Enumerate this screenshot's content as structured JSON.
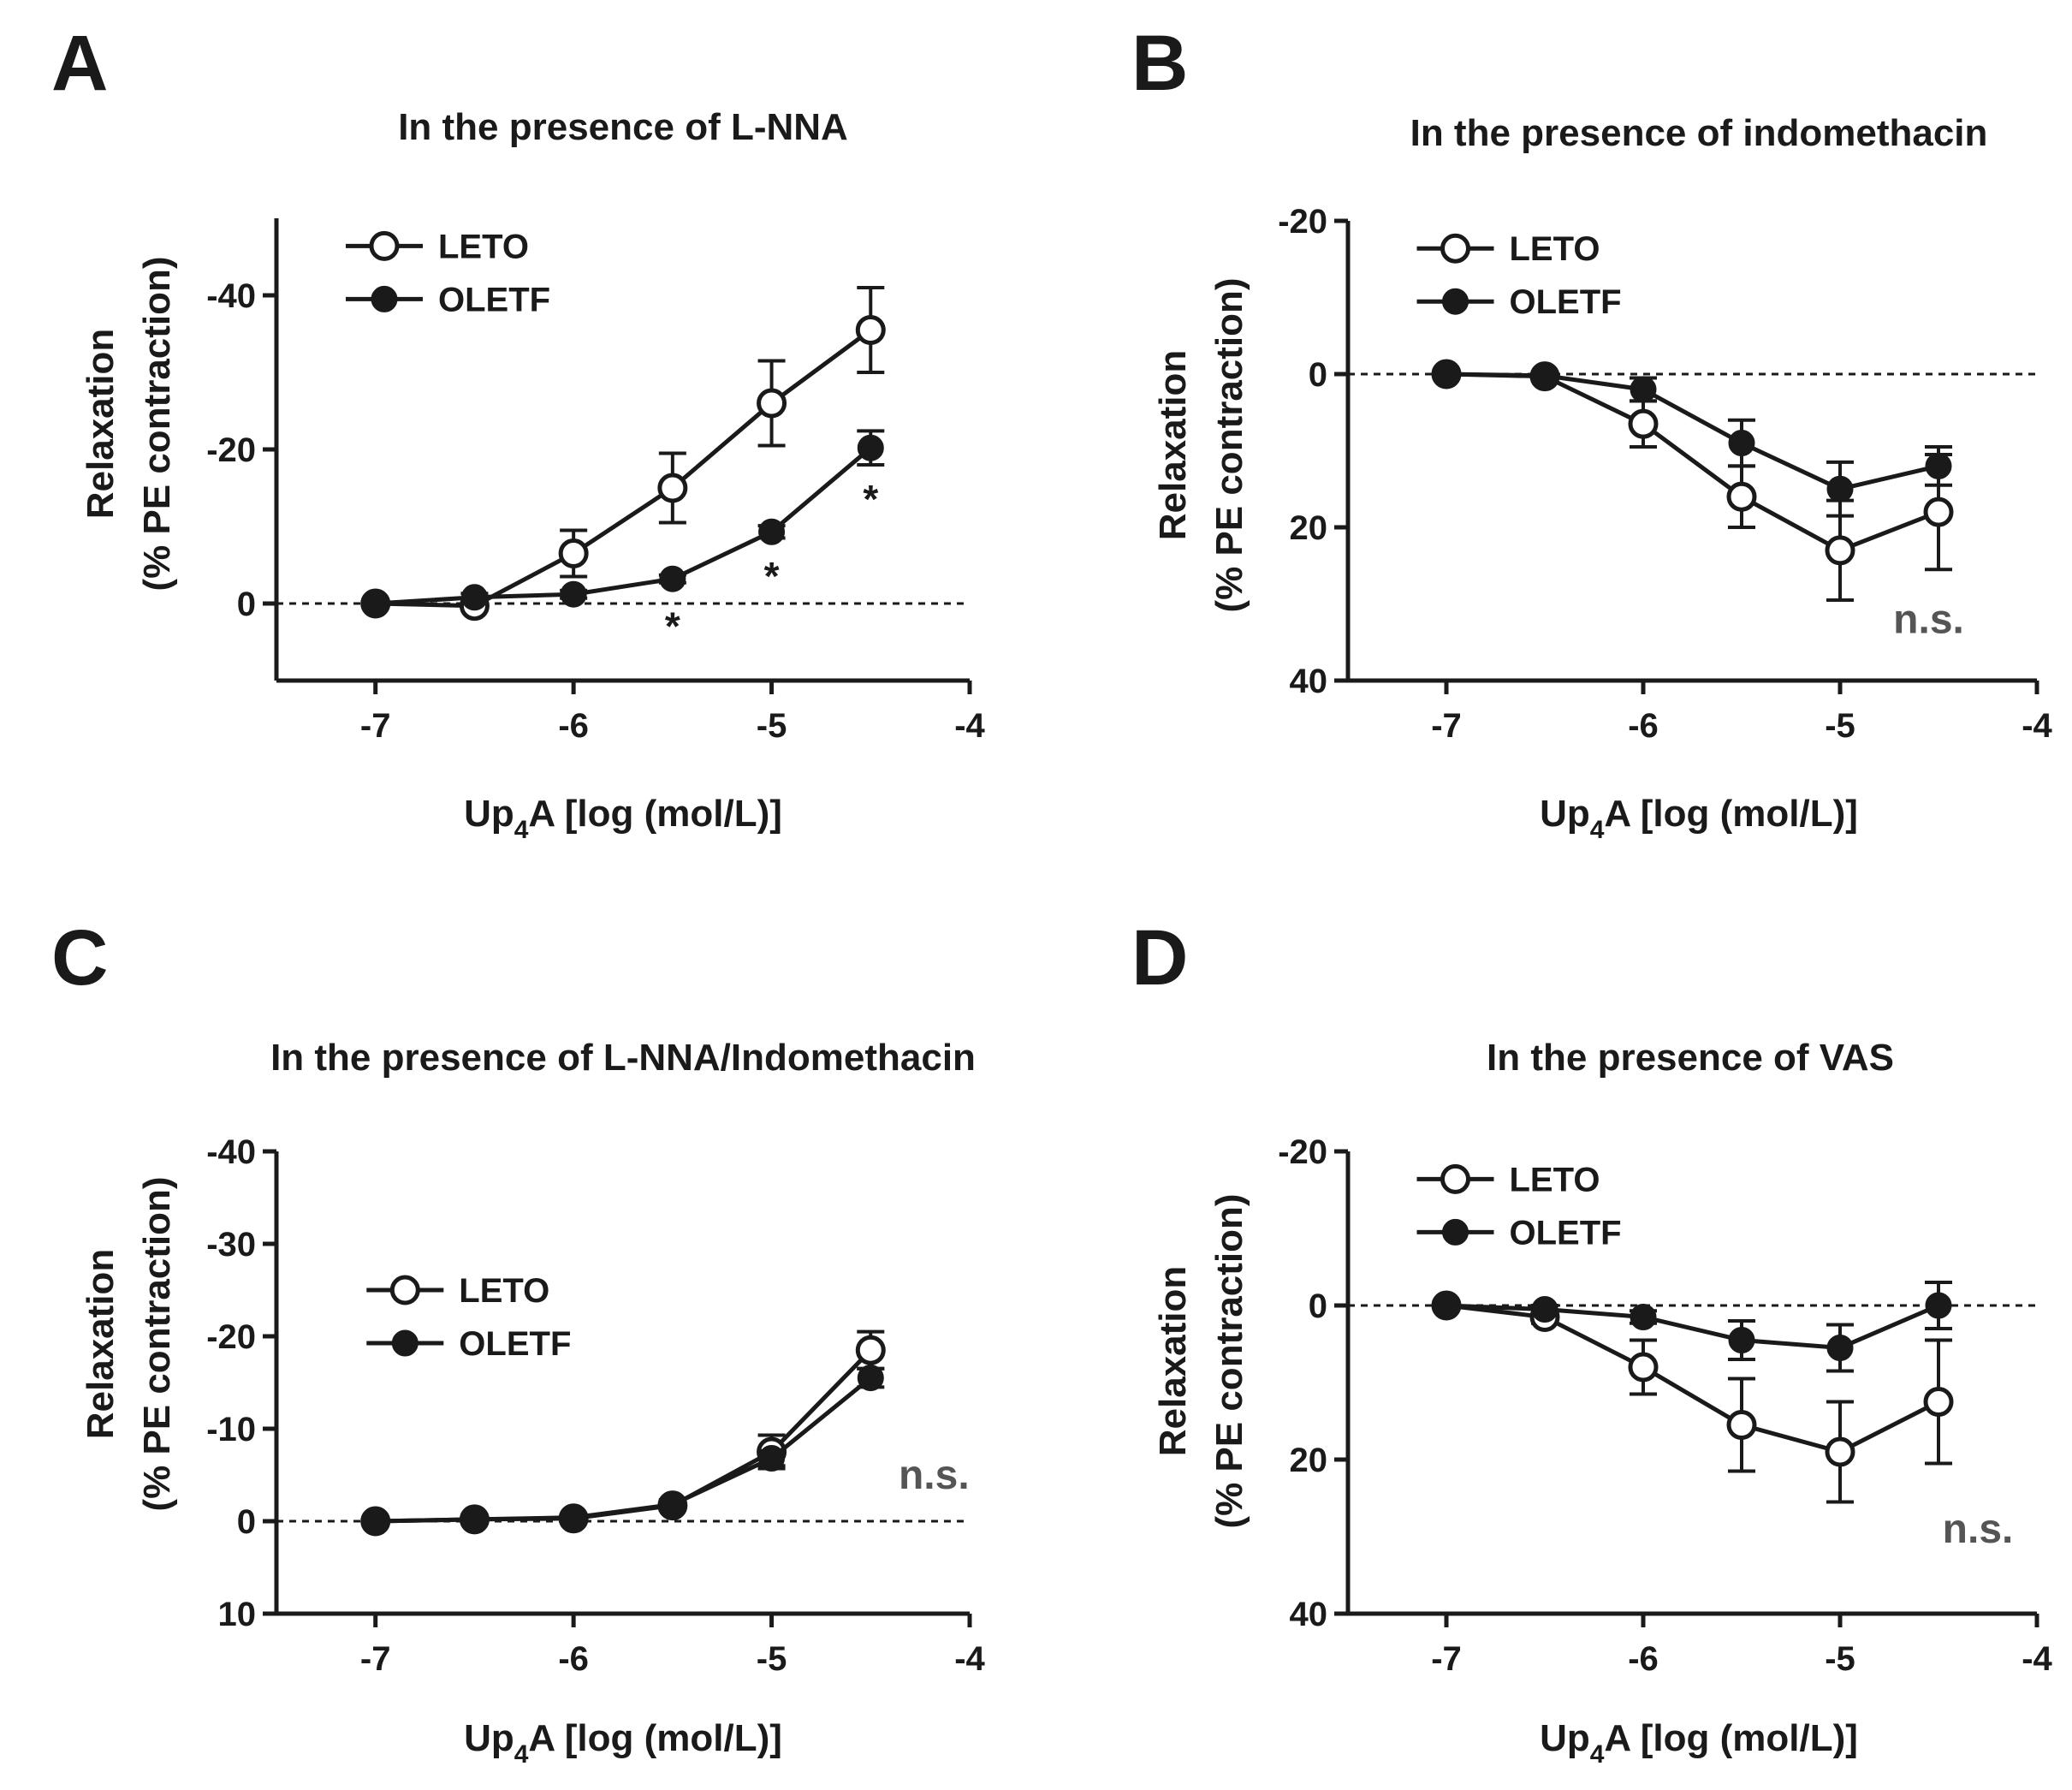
{
  "chart_data": [
    {
      "type": "line",
      "panel": "A",
      "title": "In the presence of L-NNA",
      "xlabel": "Up4A [log (mol/L)]",
      "xlabel_base": "Up",
      "xlabel_sub": "4",
      "xlabel_rest": "A [log (mol/L)]",
      "ylabel_line1": "Relaxation",
      "ylabel_line2": "(% PE contraction)",
      "xlim": [
        -7.5,
        -4
      ],
      "xticks": [
        -7,
        -6,
        -5,
        -4
      ],
      "xtick_labels": [
        "-7",
        "-6",
        "-5",
        "-4"
      ],
      "ylim": [
        10,
        -50
      ],
      "yticks": [
        0,
        -20,
        -40
      ],
      "ytick_labels": [
        "0",
        "-20",
        "-40"
      ],
      "zero_line": true,
      "legend": {
        "placement": "top-left",
        "entries": [
          "LETO",
          "OLETF"
        ]
      },
      "series": [
        {
          "name": "LETO",
          "marker": "open-circle",
          "x": [
            -7,
            -6.5,
            -6,
            -5.5,
            -5,
            -4.5
          ],
          "y": [
            0,
            0.3,
            -6.5,
            -15,
            -26,
            -35.5
          ],
          "err": [
            0,
            0.5,
            3,
            4.5,
            5.5,
            5.5
          ]
        },
        {
          "name": "OLETF",
          "marker": "filled-circle",
          "x": [
            -7,
            -6.5,
            -6,
            -5.5,
            -5,
            -4.5
          ],
          "y": [
            0,
            -0.8,
            -1.2,
            -3.2,
            -9.3,
            -20.2
          ],
          "err": [
            0,
            0.5,
            0.5,
            0.5,
            0.8,
            2.2
          ]
        }
      ],
      "annotations": [
        {
          "text": "*",
          "x": -5.5,
          "y": 2.5
        },
        {
          "text": "*",
          "x": -5,
          "y": -4
        },
        {
          "text": "*",
          "x": -4.5,
          "y": -14
        }
      ]
    },
    {
      "type": "line",
      "panel": "B",
      "title": "In the presence of indomethacin",
      "xlabel": "Up4A [log (mol/L)]",
      "xlabel_base": "Up",
      "xlabel_sub": "4",
      "xlabel_rest": "A [log (mol/L)]",
      "ylabel_line1": "Relaxation",
      "ylabel_line2": "(% PE contraction)",
      "xlim": [
        -7.5,
        -4
      ],
      "xticks": [
        -7,
        -6,
        -5,
        -4
      ],
      "xtick_labels": [
        "-7",
        "-6",
        "-5",
        "-4"
      ],
      "ylim": [
        40,
        -20
      ],
      "yticks": [
        -20,
        0,
        20,
        40
      ],
      "ytick_labels": [
        "-20",
        "0",
        "20",
        "40"
      ],
      "zero_line": true,
      "legend": {
        "placement": "top-left",
        "entries": [
          "LETO",
          "OLETF"
        ]
      },
      "series": [
        {
          "name": "LETO",
          "marker": "open-circle",
          "x": [
            -7,
            -6.5,
            -6,
            -5.5,
            -5,
            -4.5
          ],
          "y": [
            0,
            0.3,
            6.5,
            16,
            23,
            18
          ],
          "err": [
            0,
            0.5,
            3,
            4,
            6.5,
            7.5
          ]
        },
        {
          "name": "OLETF",
          "marker": "filled-circle",
          "x": [
            -7,
            -6.5,
            -6,
            -5.5,
            -5,
            -4.5
          ],
          "y": [
            0,
            0.2,
            2,
            9,
            15,
            12
          ],
          "err": [
            0,
            0.5,
            1.5,
            3,
            3.5,
            2.5
          ]
        }
      ],
      "annotations": [
        {
          "text": "n.s.",
          "x": -4.55,
          "y": 32
        }
      ]
    },
    {
      "type": "line",
      "panel": "C",
      "title": "In the presence of L-NNA/Indomethacin",
      "xlabel": "Up4A [log (mol/L)]",
      "xlabel_base": "Up",
      "xlabel_sub": "4",
      "xlabel_rest": "A [log (mol/L)]",
      "ylabel_line1": "Relaxation",
      "ylabel_line2": "(% PE contraction)",
      "xlim": [
        -7.5,
        -4
      ],
      "xticks": [
        -7,
        -6,
        -5,
        -4
      ],
      "xtick_labels": [
        "-7",
        "-6",
        "-5",
        "-4"
      ],
      "ylim": [
        10,
        -40
      ],
      "yticks": [
        10,
        0,
        -10,
        -20,
        -30,
        -40
      ],
      "ytick_labels": [
        "10",
        "0",
        "-10",
        "-20",
        "-30",
        "-40"
      ],
      "zero_line": true,
      "legend": {
        "placement": "center-left",
        "entries": [
          "LETO",
          "OLETF"
        ]
      },
      "series": [
        {
          "name": "LETO",
          "marker": "open-circle",
          "x": [
            -7,
            -6.5,
            -6,
            -5.5,
            -5,
            -4.5
          ],
          "y": [
            0,
            -0.2,
            -0.3,
            -1.7,
            -7.5,
            -18.5
          ],
          "err": [
            0,
            0.3,
            0.3,
            0.5,
            1.8,
            2
          ]
        },
        {
          "name": "OLETF",
          "marker": "filled-circle",
          "x": [
            -7,
            -6.5,
            -6,
            -5.5,
            -5,
            -4.5
          ],
          "y": [
            0,
            -0.2,
            -0.4,
            -1.8,
            -6.8,
            -15.5
          ],
          "err": [
            0,
            0.3,
            0.3,
            0.5,
            0.8,
            1
          ]
        }
      ],
      "annotations": [
        {
          "text": "n.s.",
          "x": -4.18,
          "y": -5
        }
      ]
    },
    {
      "type": "line",
      "panel": "D",
      "title": "In the presence of VAS",
      "xlabel": "Up4A [log (mol/L)]",
      "xlabel_base": "Up",
      "xlabel_sub": "4",
      "xlabel_rest": "A [log (mol/L)]",
      "ylabel_line1": "Relaxation",
      "ylabel_line2": "(% PE contraction)",
      "xlim": [
        -7.5,
        -4
      ],
      "xticks": [
        -7,
        -6,
        -5,
        -4
      ],
      "xtick_labels": [
        "-7",
        "-6",
        "-5",
        "-4"
      ],
      "ylim": [
        40,
        -20
      ],
      "yticks": [
        -20,
        0,
        20,
        40
      ],
      "ytick_labels": [
        "-20",
        "0",
        "20",
        "40"
      ],
      "zero_line": true,
      "legend": {
        "placement": "top-left",
        "entries": [
          "LETO",
          "OLETF"
        ]
      },
      "series": [
        {
          "name": "LETO",
          "marker": "open-circle",
          "x": [
            -7,
            -6.5,
            -6,
            -5.5,
            -5,
            -4.5
          ],
          "y": [
            0,
            1.5,
            8,
            15.5,
            19,
            12.5
          ],
          "err": [
            0,
            0.8,
            3.5,
            6,
            6.5,
            8
          ]
        },
        {
          "name": "OLETF",
          "marker": "filled-circle",
          "x": [
            -7,
            -6.5,
            -6,
            -5.5,
            -5,
            -4.5
          ],
          "y": [
            0,
            0.5,
            1.5,
            4.5,
            5.5,
            0
          ],
          "err": [
            0,
            0.5,
            0.8,
            2.5,
            3,
            3
          ]
        }
      ],
      "annotations": [
        {
          "text": "n.s.",
          "x": -4.3,
          "y": 29
        }
      ]
    }
  ]
}
